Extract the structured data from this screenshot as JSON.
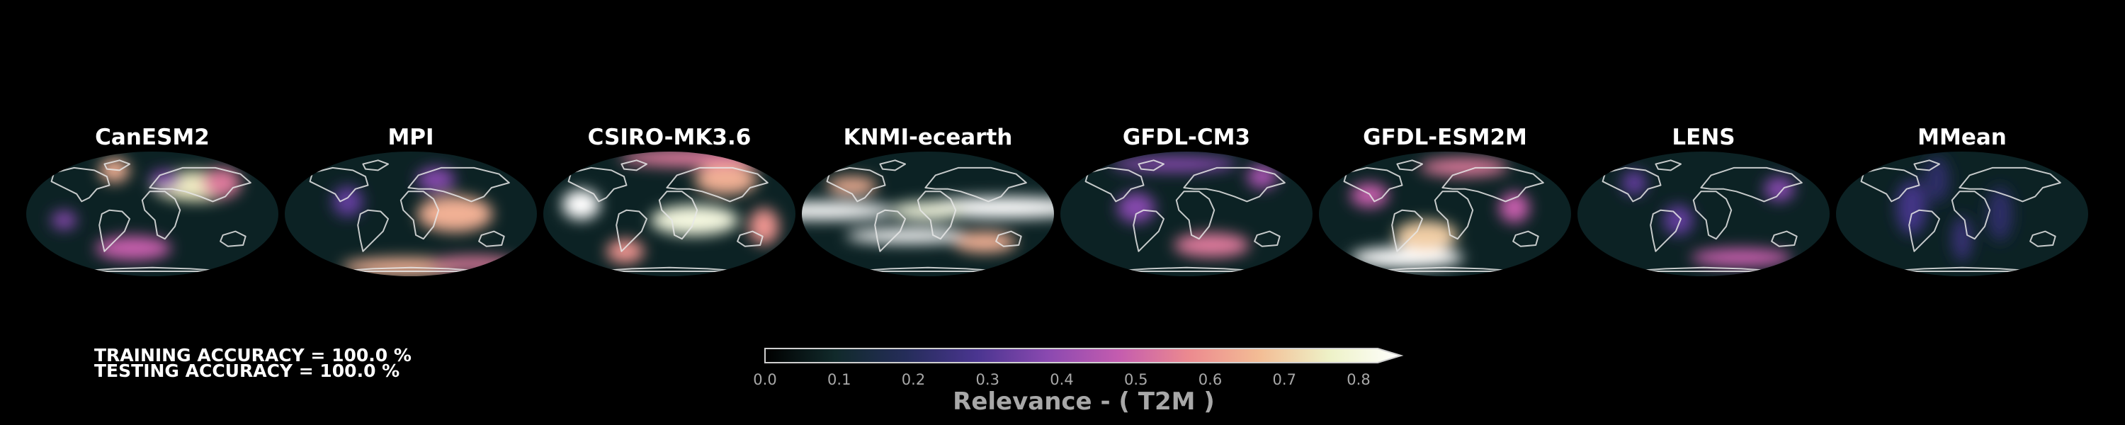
{
  "maps": [
    {
      "title": "CanESM2",
      "blobs": [
        [
          0.35,
          0.45,
          0.7,
          0.35,
          0.1
        ],
        [
          -0.3,
          0.7,
          0.6,
          0.12,
          0.08
        ],
        [
          0.55,
          0.5,
          0.5,
          0.15,
          0.1
        ],
        [
          -0.15,
          -0.55,
          0.45,
          0.3,
          0.08
        ],
        [
          0.1,
          0.55,
          0.35,
          0.12,
          0.06
        ],
        [
          -0.7,
          -0.1,
          0.35,
          0.1,
          0.06
        ]
      ]
    },
    {
      "title": "MPI",
      "blobs": [
        [
          0.35,
          0.0,
          0.6,
          0.3,
          0.12
        ],
        [
          -0.05,
          -0.85,
          0.6,
          0.5,
          0.06
        ],
        [
          0.2,
          0.55,
          0.35,
          0.15,
          0.08
        ],
        [
          -0.5,
          0.2,
          0.3,
          0.12,
          0.1
        ],
        [
          0.5,
          -0.8,
          0.5,
          0.35,
          0.05
        ]
      ]
    },
    {
      "title": "CSIRO-MK3.6",
      "blobs": [
        [
          -0.7,
          0.15,
          0.85,
          0.15,
          0.1
        ],
        [
          0.2,
          -0.1,
          0.75,
          0.35,
          0.1
        ],
        [
          0.45,
          0.55,
          0.6,
          0.25,
          0.1
        ],
        [
          0.2,
          0.9,
          0.5,
          0.6,
          0.06
        ],
        [
          -0.35,
          -0.6,
          0.55,
          0.15,
          0.08
        ],
        [
          0.75,
          -0.2,
          0.55,
          0.12,
          0.12
        ]
      ]
    },
    {
      "title": "KNMI-ecearth",
      "blobs": [
        [
          -0.85,
          0.05,
          0.95,
          0.6,
          0.06
        ],
        [
          0.6,
          0.1,
          0.9,
          0.7,
          0.07
        ],
        [
          0.0,
          0.05,
          0.75,
          0.3,
          0.06
        ],
        [
          -0.15,
          -0.35,
          0.8,
          0.5,
          0.05
        ],
        [
          0.45,
          -0.45,
          0.6,
          0.25,
          0.07
        ],
        [
          -0.6,
          0.45,
          0.6,
          0.2,
          0.06
        ]
      ]
    },
    {
      "title": "GFDL-CM3",
      "blobs": [
        [
          0.2,
          -0.5,
          0.5,
          0.3,
          0.08
        ],
        [
          -0.4,
          0.1,
          0.35,
          0.15,
          0.1
        ],
        [
          0.6,
          0.6,
          0.4,
          0.12,
          0.08
        ],
        [
          -0.1,
          0.8,
          0.35,
          0.5,
          0.05
        ]
      ]
    },
    {
      "title": "GFDL-ESM2M",
      "blobs": [
        [
          -0.3,
          -0.7,
          0.8,
          0.45,
          0.07
        ],
        [
          -0.15,
          -0.35,
          0.65,
          0.25,
          0.1
        ],
        [
          0.15,
          0.75,
          0.5,
          0.35,
          0.06
        ],
        [
          0.55,
          0.1,
          0.45,
          0.12,
          0.1
        ],
        [
          -0.6,
          0.3,
          0.45,
          0.15,
          0.08
        ]
      ]
    },
    {
      "title": "LENS",
      "blobs": [
        [
          0.3,
          -0.7,
          0.45,
          0.4,
          0.06
        ],
        [
          -0.2,
          -0.1,
          0.3,
          0.12,
          0.1
        ],
        [
          0.6,
          0.4,
          0.35,
          0.12,
          0.08
        ],
        [
          -0.55,
          0.5,
          0.3,
          0.1,
          0.08
        ]
      ]
    },
    {
      "title": "MMean",
      "blobs": [
        [
          -0.4,
          0.1,
          0.25,
          0.12,
          0.18
        ],
        [
          0.3,
          0.0,
          0.2,
          0.1,
          0.18
        ],
        [
          0.0,
          -0.4,
          0.22,
          0.08,
          0.15
        ],
        [
          -0.2,
          0.55,
          0.2,
          0.1,
          0.15
        ]
      ]
    }
  ],
  "accuracy": {
    "training": "TRAINING ACCURACY = 100.0 %",
    "testing": "TESTING ACCURACY = 100.0 %"
  },
  "colorbar": {
    "ticks": [
      "0.0",
      "0.1",
      "0.2",
      "0.3",
      "0.4",
      "0.5",
      "0.6",
      "0.7",
      "0.8"
    ],
    "label": "Relevance - ( T2M )",
    "stops": [
      "#000000",
      "#112a2b",
      "#252d5a",
      "#4a3590",
      "#8a49b0",
      "#c45caf",
      "#ec8a8f",
      "#f3bd95",
      "#eef2c8",
      "#ffffff"
    ]
  }
}
